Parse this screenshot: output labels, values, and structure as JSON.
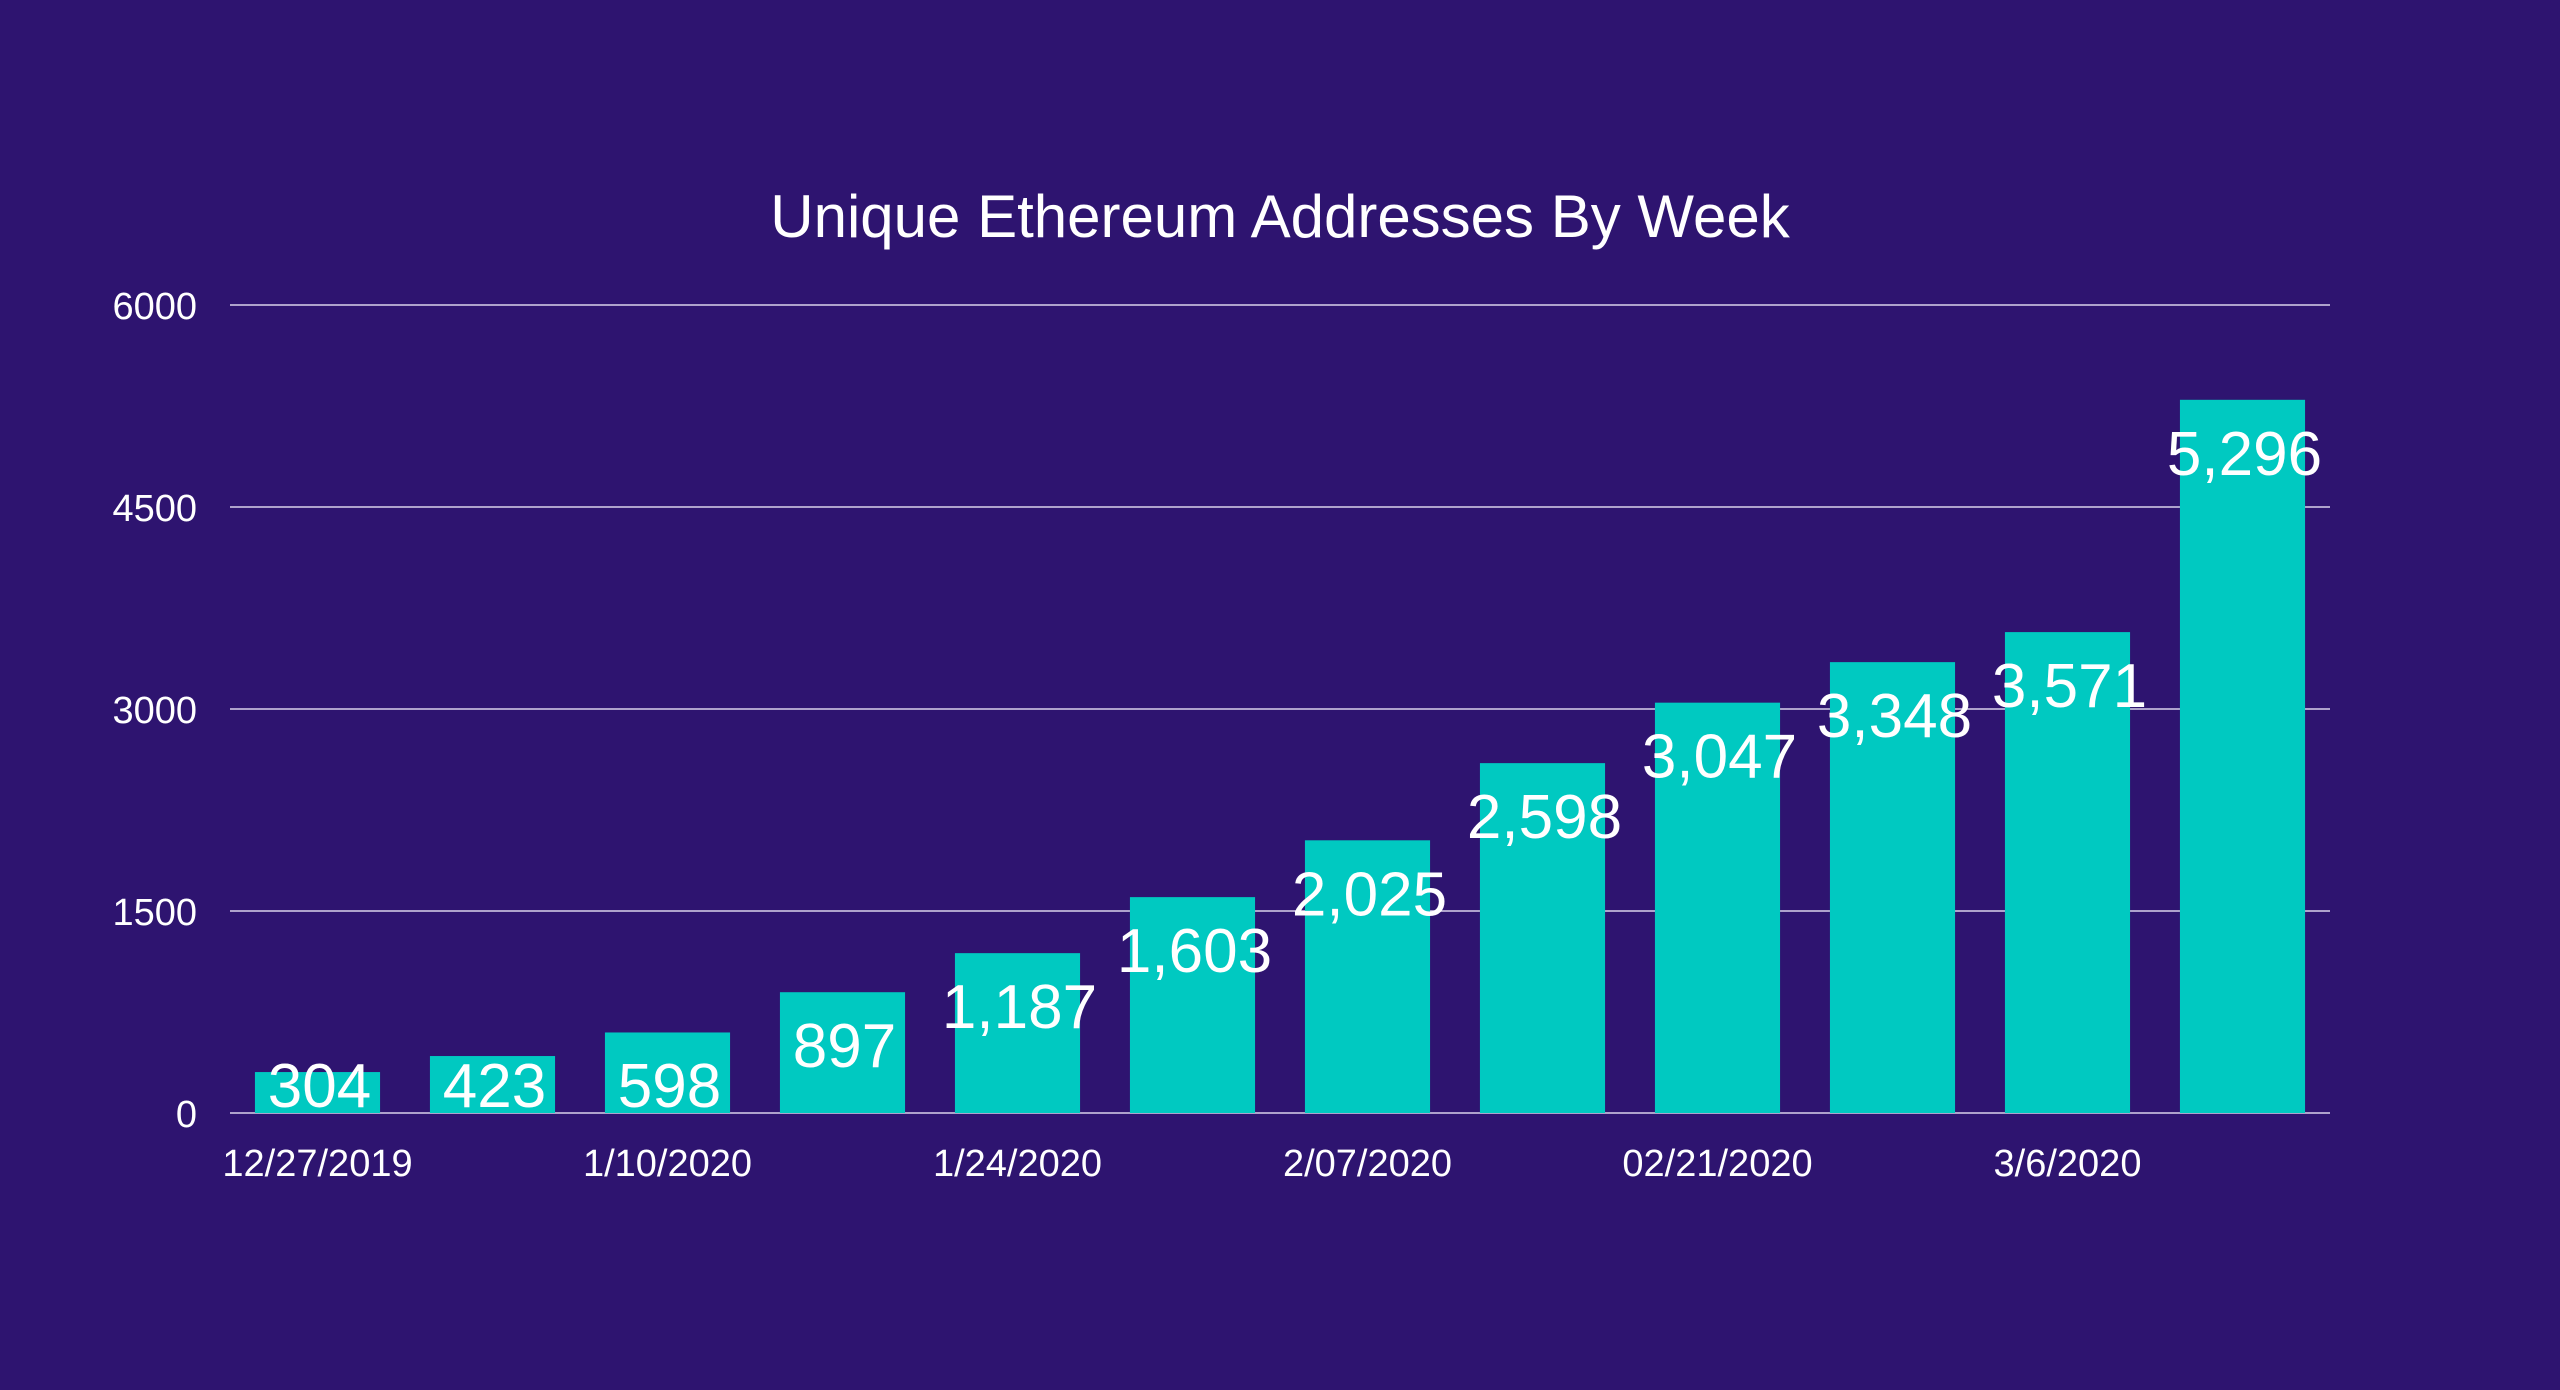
{
  "chart_data": {
    "type": "bar",
    "title": "Unique  Ethereum Addresses By Week",
    "xlabel": "",
    "ylabel": "",
    "ylim": [
      0,
      6000
    ],
    "yticks": [
      0,
      1500,
      3000,
      4500,
      6000
    ],
    "ytick_labels": [
      "0",
      "1500",
      "3000",
      "4500",
      "6000"
    ],
    "grid": true,
    "categories": [
      "12/27/2019",
      "",
      "1/10/2020",
      "",
      "1/24/2020",
      "",
      "2/07/2020",
      "",
      "02/21/2020",
      "",
      "3/6/2020",
      ""
    ],
    "values": [
      304,
      423,
      598,
      897,
      1187,
      1603,
      2025,
      2598,
      3047,
      3348,
      3571,
      5296
    ],
    "data_labels": [
      "304",
      "423",
      "598",
      "897",
      "1,187",
      "1,603",
      "2,025",
      "2,598",
      "3,047",
      "3,348",
      "3,571",
      "5,296"
    ]
  },
  "colors": {
    "background": "#2e1470",
    "bar": "#00c9c1",
    "text": "#ffffff",
    "grid": "#d8d2ea"
  }
}
